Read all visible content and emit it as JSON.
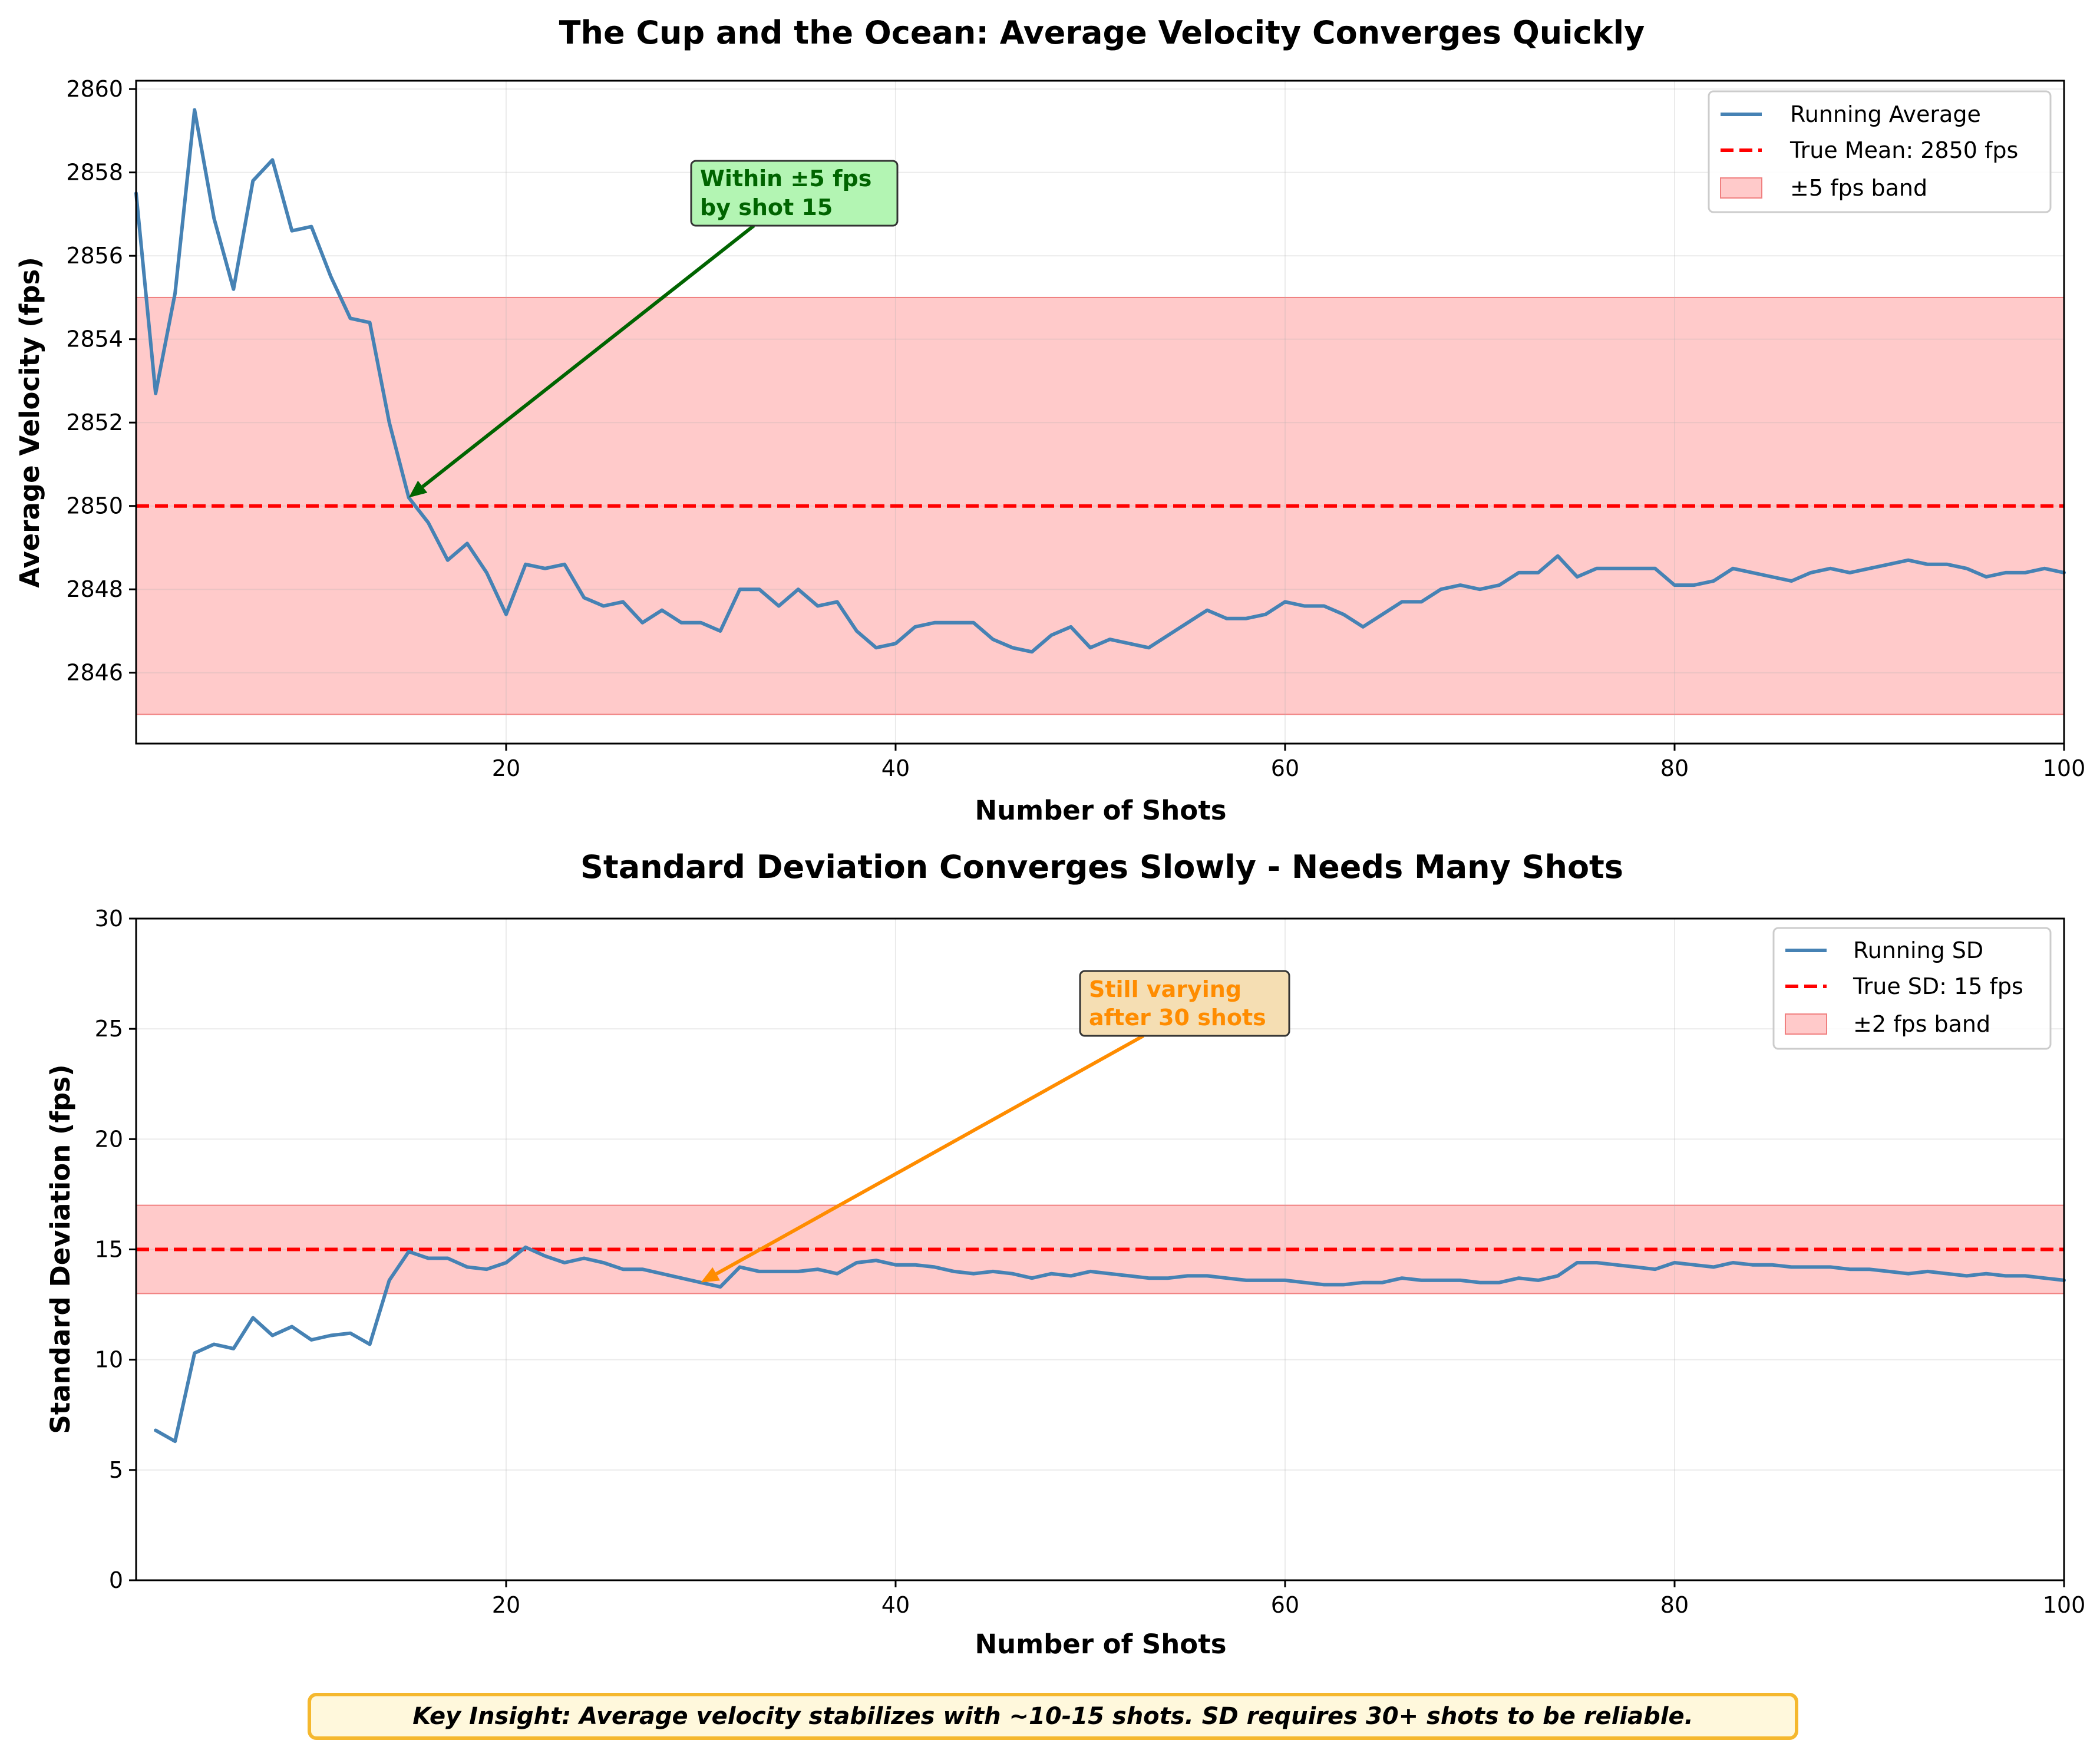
{
  "chart_data": [
    {
      "type": "line",
      "title": "The Cup and the Ocean: Average Velocity Converges Quickly",
      "xlabel": "Number of Shots",
      "ylabel": "Average Velocity (fps)",
      "xlim": [
        1,
        100
      ],
      "ylim": [
        2844.3,
        2860.2
      ],
      "xticks": [
        20,
        40,
        60,
        80,
        100
      ],
      "yticks": [
        2846,
        2848,
        2850,
        2852,
        2854,
        2856,
        2858,
        2860
      ],
      "grid": true,
      "legend_position": "top-right",
      "series": [
        {
          "name": "Running Average",
          "color": "#4682B4",
          "x": [
            1,
            2,
            3,
            4,
            5,
            6,
            7,
            8,
            9,
            10,
            11,
            12,
            13,
            14,
            15,
            16,
            17,
            18,
            19,
            20,
            21,
            22,
            23,
            24,
            25,
            26,
            27,
            28,
            29,
            30,
            31,
            32,
            33,
            34,
            35,
            36,
            37,
            38,
            39,
            40,
            41,
            42,
            43,
            44,
            45,
            46,
            47,
            48,
            49,
            50,
            51,
            52,
            53,
            54,
            55,
            56,
            57,
            58,
            59,
            60,
            61,
            62,
            63,
            64,
            65,
            66,
            67,
            68,
            69,
            70,
            71,
            72,
            73,
            74,
            75,
            76,
            77,
            78,
            79,
            80,
            81,
            82,
            83,
            84,
            85,
            86,
            87,
            88,
            89,
            90,
            91,
            92,
            93,
            94,
            95,
            96,
            97,
            98,
            99,
            100
          ],
          "values": [
            2857.5,
            2852.7,
            2855.1,
            2859.5,
            2856.9,
            2855.2,
            2857.8,
            2858.3,
            2856.6,
            2856.7,
            2855.5,
            2854.5,
            2854.4,
            2852.0,
            2850.2,
            2849.6,
            2848.7,
            2849.1,
            2848.4,
            2847.4,
            2848.6,
            2848.5,
            2848.6,
            2847.8,
            2847.6,
            2847.7,
            2847.2,
            2847.5,
            2847.2,
            2847.2,
            2847.0,
            2848.0,
            2848.0,
            2847.6,
            2848.0,
            2847.6,
            2847.7,
            2847.0,
            2846.6,
            2846.7,
            2847.1,
            2847.2,
            2847.2,
            2847.2,
            2846.8,
            2846.6,
            2846.5,
            2846.9,
            2847.1,
            2846.6,
            2846.8,
            2846.7,
            2846.6,
            2846.9,
            2847.2,
            2847.5,
            2847.3,
            2847.3,
            2847.4,
            2847.7,
            2847.6,
            2847.6,
            2847.4,
            2847.1,
            2847.4,
            2847.7,
            2847.7,
            2848.0,
            2848.1,
            2848.0,
            2848.1,
            2848.4,
            2848.4,
            2848.8,
            2848.3,
            2848.5,
            2848.5,
            2848.5,
            2848.5,
            2848.1,
            2848.1,
            2848.2,
            2848.5,
            2848.4,
            2848.3,
            2848.2,
            2848.4,
            2848.5,
            2848.4,
            2848.5,
            2848.6,
            2848.7,
            2848.6,
            2848.6,
            2848.5,
            2848.3,
            2848.4,
            2848.4,
            2848.5,
            2848.4
          ]
        },
        {
          "name": "True Mean: 2850 fps",
          "color": "#FF0000",
          "style": "dashed",
          "y": 2850
        },
        {
          "name": "±5 fps band",
          "color": "#FFB3B3",
          "band": [
            2845,
            2855
          ]
        }
      ],
      "annotation": {
        "text_lines": [
          "Within ±5 fps",
          "by shot 15"
        ],
        "point": [
          15,
          2850.2
        ],
        "text_anchor": [
          30,
          2857.3
        ],
        "color": "#006400",
        "box_color": "#B3F5B3"
      }
    },
    {
      "type": "line",
      "title": "Standard Deviation Converges Slowly - Needs Many Shots",
      "xlabel": "Number of Shots",
      "ylabel": "Standard Deviation (fps)",
      "xlim": [
        1,
        100
      ],
      "ylim": [
        0,
        30
      ],
      "xticks": [
        20,
        40,
        60,
        80,
        100
      ],
      "yticks": [
        0,
        5,
        10,
        15,
        20,
        25,
        30
      ],
      "grid": true,
      "legend_position": "top-right",
      "series": [
        {
          "name": "Running SD",
          "color": "#4682B4",
          "x": [
            2,
            3,
            4,
            5,
            6,
            7,
            8,
            9,
            10,
            11,
            12,
            13,
            14,
            15,
            16,
            17,
            18,
            19,
            20,
            21,
            22,
            23,
            24,
            25,
            26,
            27,
            28,
            29,
            30,
            31,
            32,
            33,
            34,
            35,
            36,
            37,
            38,
            39,
            40,
            41,
            42,
            43,
            44,
            45,
            46,
            47,
            48,
            49,
            50,
            51,
            52,
            53,
            54,
            55,
            56,
            57,
            58,
            59,
            60,
            61,
            62,
            63,
            64,
            65,
            66,
            67,
            68,
            69,
            70,
            71,
            72,
            73,
            74,
            75,
            76,
            77,
            78,
            79,
            80,
            81,
            82,
            83,
            84,
            85,
            86,
            87,
            88,
            89,
            90,
            91,
            92,
            93,
            94,
            95,
            96,
            97,
            98,
            99,
            100
          ],
          "values": [
            6.8,
            6.3,
            10.3,
            10.7,
            10.5,
            11.9,
            11.1,
            11.5,
            10.9,
            11.1,
            11.2,
            10.7,
            13.6,
            14.9,
            14.6,
            14.6,
            14.2,
            14.1,
            14.4,
            15.1,
            14.7,
            14.4,
            14.6,
            14.4,
            14.1,
            14.1,
            13.9,
            13.7,
            13.5,
            13.3,
            14.2,
            14.0,
            14.0,
            14.0,
            14.1,
            13.9,
            14.4,
            14.5,
            14.3,
            14.3,
            14.2,
            14.0,
            13.9,
            14.0,
            13.9,
            13.7,
            13.9,
            13.8,
            14.0,
            13.9,
            13.8,
            13.7,
            13.7,
            13.8,
            13.8,
            13.7,
            13.6,
            13.6,
            13.6,
            13.5,
            13.4,
            13.4,
            13.5,
            13.5,
            13.7,
            13.6,
            13.6,
            13.6,
            13.5,
            13.5,
            13.7,
            13.6,
            13.8,
            14.4,
            14.4,
            14.3,
            14.2,
            14.1,
            14.4,
            14.3,
            14.2,
            14.4,
            14.3,
            14.3,
            14.2,
            14.2,
            14.2,
            14.1,
            14.1,
            14.0,
            13.9,
            14.0,
            13.9,
            13.8,
            13.9,
            13.8,
            13.8,
            13.7,
            13.6
          ]
        },
        {
          "name": "True SD: 15 fps",
          "color": "#FF0000",
          "style": "dashed",
          "y": 15
        },
        {
          "name": "±2 fps band",
          "color": "#FFB3B3",
          "band": [
            13,
            17
          ]
        }
      ],
      "annotation": {
        "text_lines": [
          "Still varying",
          "after 30 shots"
        ],
        "point": [
          30,
          13.5
        ],
        "text_anchor": [
          50,
          25.4
        ],
        "color": "#FF8C00",
        "box_color": "#F5DEB3"
      }
    }
  ],
  "footer": {
    "insight": "Key Insight: Average velocity stabilizes with ~10-15 shots. SD requires 30+ shots to be reliable."
  }
}
